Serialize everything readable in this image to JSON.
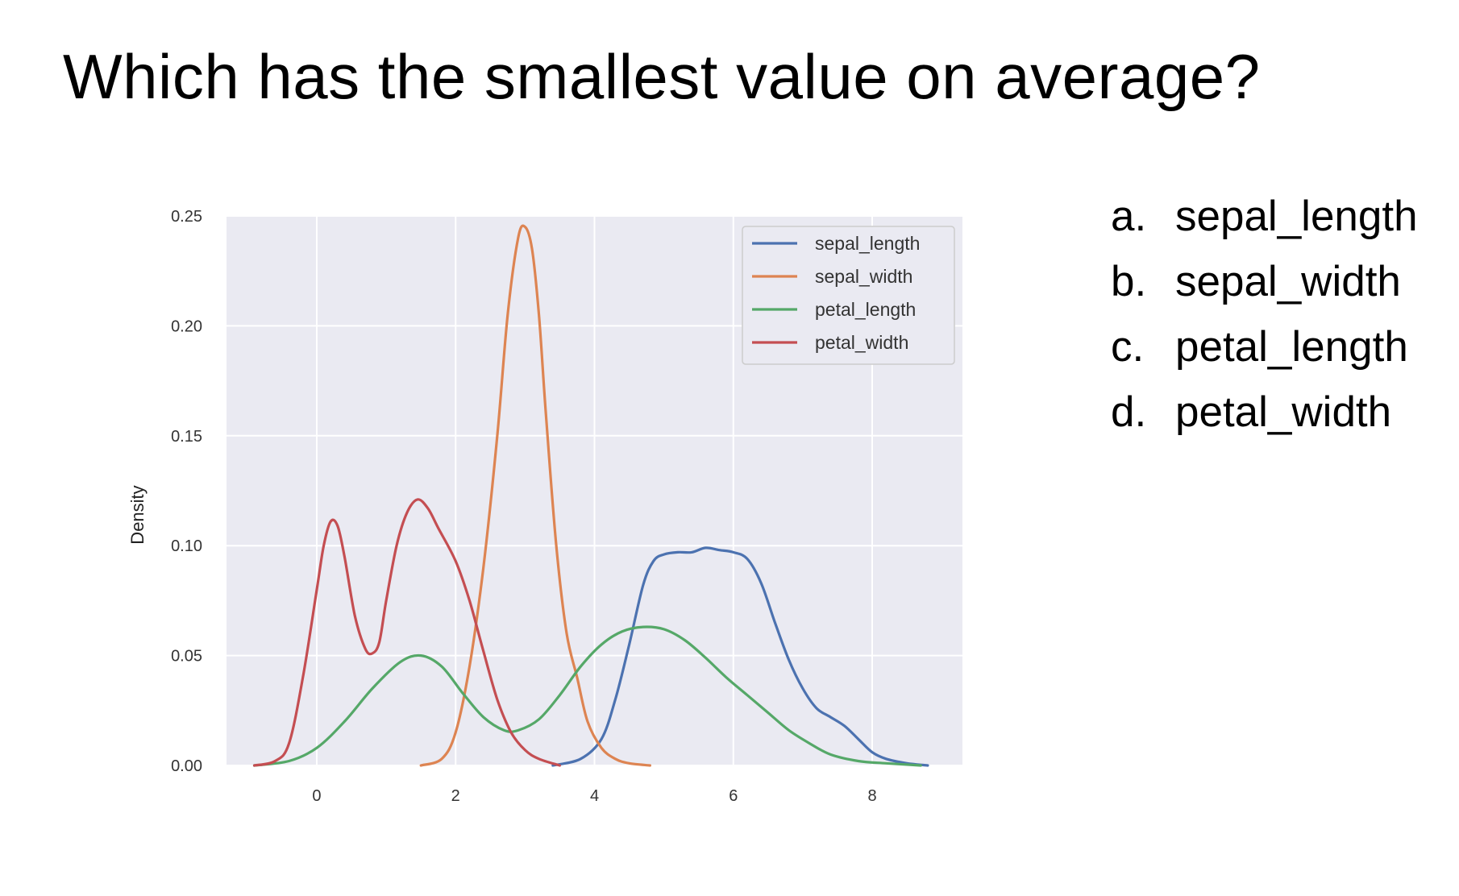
{
  "slide": {
    "title": "Which has the smallest value on average?",
    "options": [
      {
        "letter": "a.",
        "text": "sepal_length"
      },
      {
        "letter": "b.",
        "text": "sepal_width"
      },
      {
        "letter": "c.",
        "text": "petal_length"
      },
      {
        "letter": "d.",
        "text": "petal_width"
      }
    ]
  },
  "chart_data": {
    "type": "line",
    "title": "",
    "xlabel": "",
    "ylabel": "Density",
    "xlim": [
      -1.3,
      9.3
    ],
    "ylim": [
      0,
      0.25
    ],
    "xticks": [
      0,
      2,
      4,
      6,
      8
    ],
    "yticks": [
      0.0,
      0.05,
      0.1,
      0.15,
      0.2,
      0.25
    ],
    "ytick_labels": [
      "0.00",
      "0.05",
      "0.10",
      "0.15",
      "0.20",
      "0.25"
    ],
    "grid": true,
    "background": "#eaeaf2",
    "legend_position": "top-right",
    "series": [
      {
        "name": "sepal_length",
        "color": "#4c72b0",
        "points": [
          [
            3.4,
            0.0
          ],
          [
            3.8,
            0.003
          ],
          [
            4.1,
            0.012
          ],
          [
            4.3,
            0.03
          ],
          [
            4.5,
            0.055
          ],
          [
            4.7,
            0.082
          ],
          [
            4.85,
            0.093
          ],
          [
            5.0,
            0.096
          ],
          [
            5.2,
            0.097
          ],
          [
            5.4,
            0.097
          ],
          [
            5.6,
            0.099
          ],
          [
            5.8,
            0.098
          ],
          [
            6.0,
            0.097
          ],
          [
            6.2,
            0.094
          ],
          [
            6.4,
            0.083
          ],
          [
            6.6,
            0.065
          ],
          [
            6.8,
            0.048
          ],
          [
            7.0,
            0.035
          ],
          [
            7.2,
            0.026
          ],
          [
            7.4,
            0.022
          ],
          [
            7.6,
            0.018
          ],
          [
            7.8,
            0.012
          ],
          [
            8.0,
            0.006
          ],
          [
            8.2,
            0.003
          ],
          [
            8.5,
            0.001
          ],
          [
            8.8,
            0.0
          ]
        ]
      },
      {
        "name": "sepal_width",
        "color": "#dd8452",
        "points": [
          [
            1.5,
            0.0
          ],
          [
            1.8,
            0.003
          ],
          [
            2.0,
            0.015
          ],
          [
            2.2,
            0.045
          ],
          [
            2.4,
            0.09
          ],
          [
            2.6,
            0.15
          ],
          [
            2.75,
            0.205
          ],
          [
            2.9,
            0.24
          ],
          [
            3.0,
            0.245
          ],
          [
            3.1,
            0.235
          ],
          [
            3.2,
            0.205
          ],
          [
            3.3,
            0.16
          ],
          [
            3.45,
            0.1
          ],
          [
            3.6,
            0.06
          ],
          [
            3.75,
            0.04
          ],
          [
            3.9,
            0.02
          ],
          [
            4.1,
            0.008
          ],
          [
            4.3,
            0.003
          ],
          [
            4.5,
            0.001
          ],
          [
            4.8,
            0.0
          ]
        ]
      },
      {
        "name": "petal_length",
        "color": "#55a868",
        "points": [
          [
            -0.9,
            0.0
          ],
          [
            -0.4,
            0.002
          ],
          [
            0.0,
            0.008
          ],
          [
            0.4,
            0.02
          ],
          [
            0.8,
            0.035
          ],
          [
            1.2,
            0.047
          ],
          [
            1.5,
            0.05
          ],
          [
            1.8,
            0.045
          ],
          [
            2.1,
            0.033
          ],
          [
            2.4,
            0.022
          ],
          [
            2.7,
            0.016
          ],
          [
            2.9,
            0.016
          ],
          [
            3.2,
            0.021
          ],
          [
            3.5,
            0.032
          ],
          [
            3.8,
            0.045
          ],
          [
            4.1,
            0.055
          ],
          [
            4.4,
            0.061
          ],
          [
            4.7,
            0.063
          ],
          [
            5.0,
            0.062
          ],
          [
            5.3,
            0.057
          ],
          [
            5.6,
            0.049
          ],
          [
            5.9,
            0.04
          ],
          [
            6.2,
            0.032
          ],
          [
            6.5,
            0.024
          ],
          [
            6.8,
            0.016
          ],
          [
            7.1,
            0.01
          ],
          [
            7.4,
            0.005
          ],
          [
            7.8,
            0.002
          ],
          [
            8.2,
            0.001
          ],
          [
            8.7,
            0.0
          ]
        ]
      },
      {
        "name": "petal_width",
        "color": "#c44e52",
        "points": [
          [
            -0.9,
            0.0
          ],
          [
            -0.6,
            0.002
          ],
          [
            -0.4,
            0.01
          ],
          [
            -0.2,
            0.04
          ],
          [
            0.0,
            0.08
          ],
          [
            0.1,
            0.1
          ],
          [
            0.2,
            0.111
          ],
          [
            0.3,
            0.109
          ],
          [
            0.4,
            0.095
          ],
          [
            0.55,
            0.068
          ],
          [
            0.7,
            0.053
          ],
          [
            0.8,
            0.051
          ],
          [
            0.9,
            0.056
          ],
          [
            1.0,
            0.075
          ],
          [
            1.15,
            0.1
          ],
          [
            1.3,
            0.115
          ],
          [
            1.45,
            0.121
          ],
          [
            1.6,
            0.117
          ],
          [
            1.75,
            0.108
          ],
          [
            2.0,
            0.093
          ],
          [
            2.2,
            0.075
          ],
          [
            2.4,
            0.052
          ],
          [
            2.6,
            0.03
          ],
          [
            2.8,
            0.015
          ],
          [
            3.0,
            0.007
          ],
          [
            3.2,
            0.003
          ],
          [
            3.5,
            0.0
          ]
        ]
      }
    ]
  }
}
